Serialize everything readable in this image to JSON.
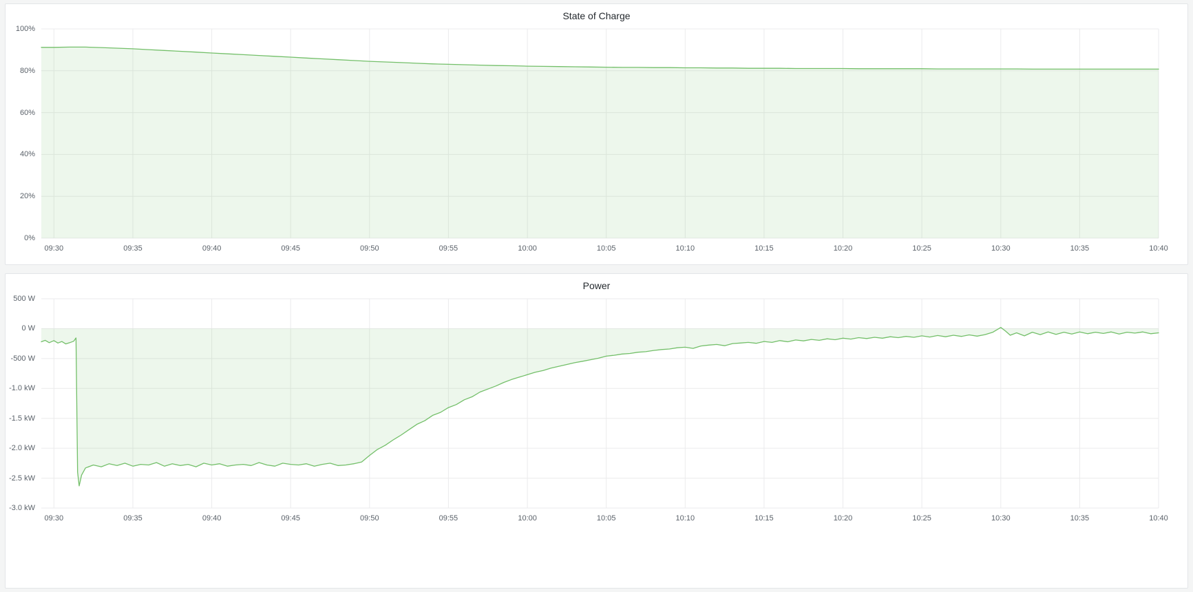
{
  "theme": {
    "page_bg": "#f4f5f5",
    "panel_bg": "#ffffff",
    "panel_border": "#e3e5e8",
    "series_color": "#73bf69",
    "fill_opacity": 0.13,
    "grid_color": "#ebebec",
    "title_color": "#24292e",
    "axis_text_color": "#5a6169"
  },
  "chart_data": [
    {
      "type": "area",
      "name": "state-of-charge",
      "title": "State of Charge",
      "ylabel": "",
      "xlabel": "",
      "legend": "off",
      "grid": "on",
      "xlim": [
        -0.8,
        70
      ],
      "ylim": [
        0,
        100
      ],
      "y_ticks": [
        100,
        80,
        60,
        40,
        20,
        0
      ],
      "y_tick_labels": [
        "100%",
        "80%",
        "60%",
        "40%",
        "20%",
        "0%"
      ],
      "x_ticks": [
        0,
        5,
        10,
        15,
        20,
        25,
        30,
        35,
        40,
        45,
        50,
        55,
        60,
        65,
        70
      ],
      "x_tick_labels": [
        "09:30",
        "09:35",
        "09:40",
        "09:45",
        "09:50",
        "09:55",
        "10:00",
        "10:05",
        "10:10",
        "10:15",
        "10:20",
        "10:25",
        "10:30",
        "10:35",
        "10:40"
      ],
      "x": [
        -0.8,
        0,
        1,
        2,
        3,
        4,
        5,
        6,
        7,
        8,
        9,
        10,
        11,
        12,
        13,
        14,
        15,
        16,
        17,
        18,
        19,
        20,
        21,
        22,
        23,
        24,
        25,
        26,
        27,
        28,
        29,
        30,
        31,
        32,
        33,
        34,
        35,
        36,
        37,
        38,
        39,
        40,
        41,
        42,
        43,
        44,
        45,
        46,
        47,
        48,
        49,
        50,
        51,
        52,
        53,
        54,
        55,
        56,
        57,
        58,
        59,
        60,
        61,
        62,
        63,
        64,
        65,
        66,
        67,
        68,
        69,
        70
      ],
      "values": [
        91.2,
        91.2,
        91.3,
        91.3,
        91.1,
        90.8,
        90.5,
        90.1,
        89.7,
        89.3,
        88.9,
        88.5,
        88.1,
        87.7,
        87.3,
        86.9,
        86.5,
        86.1,
        85.7,
        85.3,
        84.9,
        84.5,
        84.2,
        83.9,
        83.6,
        83.3,
        83.1,
        82.9,
        82.7,
        82.5,
        82.4,
        82.2,
        82.1,
        82.0,
        81.9,
        81.8,
        81.7,
        81.6,
        81.6,
        81.5,
        81.5,
        81.4,
        81.4,
        81.3,
        81.3,
        81.2,
        81.2,
        81.2,
        81.1,
        81.1,
        81.1,
        81.1,
        81.0,
        81.0,
        81.0,
        81.0,
        81.0,
        80.9,
        80.9,
        80.9,
        80.9,
        80.9,
        80.9,
        80.8,
        80.8,
        80.8,
        80.8,
        80.8,
        80.8,
        80.8,
        80.8,
        80.8
      ]
    },
    {
      "type": "area",
      "name": "power",
      "title": "Power",
      "ylabel": "",
      "xlabel": "",
      "legend": "off",
      "grid": "on",
      "unit": "watts",
      "xlim": [
        -0.8,
        70
      ],
      "ylim": [
        -3000,
        500
      ],
      "y_ticks": [
        500,
        0,
        -500,
        -1000,
        -1500,
        -2000,
        -2500,
        -3000
      ],
      "y_tick_labels": [
        "500 W",
        "0 W",
        "-500 W",
        "-1.0 kW",
        "-1.5 kW",
        "-2.0 kW",
        "-2.5 kW",
        "-3.0 kW"
      ],
      "x_ticks": [
        0,
        5,
        10,
        15,
        20,
        25,
        30,
        35,
        40,
        45,
        50,
        55,
        60,
        65,
        70
      ],
      "x_tick_labels": [
        "09:30",
        "09:35",
        "09:40",
        "09:45",
        "09:50",
        "09:55",
        "10:00",
        "10:05",
        "10:10",
        "10:15",
        "10:20",
        "10:25",
        "10:30",
        "10:35",
        "10:40"
      ],
      "x": [
        -0.8,
        -0.55,
        -0.3,
        0,
        0.25,
        0.5,
        0.75,
        1.0,
        1.25,
        1.4,
        1.5,
        1.6,
        1.75,
        2.0,
        2.5,
        3.0,
        3.5,
        4.0,
        4.5,
        5.0,
        5.5,
        6.0,
        6.5,
        7.0,
        7.5,
        8.0,
        8.5,
        9.0,
        9.5,
        10.0,
        10.5,
        11.0,
        11.5,
        12.0,
        12.5,
        13.0,
        13.5,
        14.0,
        14.5,
        15.0,
        15.5,
        16.0,
        16.5,
        17.0,
        17.5,
        18.0,
        18.5,
        19.0,
        19.5,
        20.0,
        20.5,
        21.0,
        21.5,
        22.0,
        22.5,
        23.0,
        23.5,
        24.0,
        24.5,
        25.0,
        25.5,
        26.0,
        26.5,
        27.0,
        27.5,
        28.0,
        28.5,
        29.0,
        29.5,
        30.0,
        30.5,
        31.0,
        31.5,
        32.0,
        32.5,
        33.0,
        33.5,
        34.0,
        34.5,
        35.0,
        35.5,
        36.0,
        36.5,
        37.0,
        37.5,
        38.0,
        38.5,
        39.0,
        39.5,
        40.0,
        40.5,
        41.0,
        41.5,
        42.0,
        42.5,
        43.0,
        43.5,
        44.0,
        44.5,
        45.0,
        45.5,
        46.0,
        46.5,
        47.0,
        47.5,
        48.0,
        48.5,
        49.0,
        49.5,
        50.0,
        50.5,
        51.0,
        51.5,
        52.0,
        52.5,
        53.0,
        53.5,
        54.0,
        54.5,
        55.0,
        55.5,
        56.0,
        56.5,
        57.0,
        57.5,
        58.0,
        58.5,
        59.0,
        59.5,
        60.0,
        60.3,
        60.6,
        61.0,
        61.5,
        62.0,
        62.5,
        63.0,
        63.5,
        64.0,
        64.5,
        65.0,
        65.5,
        66.0,
        66.5,
        67.0,
        67.5,
        68.0,
        68.5,
        69.0,
        69.5,
        70.0
      ],
      "values": [
        -220,
        -195,
        -235,
        -200,
        -240,
        -215,
        -255,
        -235,
        -210,
        -155,
        -2400,
        -2630,
        -2450,
        -2330,
        -2280,
        -2310,
        -2260,
        -2290,
        -2250,
        -2300,
        -2270,
        -2280,
        -2240,
        -2300,
        -2260,
        -2290,
        -2270,
        -2310,
        -2250,
        -2280,
        -2260,
        -2300,
        -2280,
        -2270,
        -2290,
        -2240,
        -2280,
        -2300,
        -2250,
        -2270,
        -2280,
        -2260,
        -2300,
        -2270,
        -2250,
        -2290,
        -2280,
        -2260,
        -2230,
        -2120,
        -2020,
        -1950,
        -1860,
        -1780,
        -1690,
        -1600,
        -1540,
        -1450,
        -1400,
        -1320,
        -1270,
        -1190,
        -1140,
        -1060,
        -1010,
        -960,
        -900,
        -850,
        -810,
        -770,
        -730,
        -700,
        -660,
        -630,
        -600,
        -570,
        -545,
        -520,
        -495,
        -460,
        -445,
        -425,
        -415,
        -395,
        -385,
        -365,
        -350,
        -340,
        -320,
        -310,
        -330,
        -290,
        -275,
        -265,
        -285,
        -250,
        -240,
        -230,
        -245,
        -215,
        -230,
        -200,
        -220,
        -190,
        -205,
        -180,
        -195,
        -170,
        -185,
        -160,
        -175,
        -150,
        -165,
        -145,
        -160,
        -135,
        -150,
        -130,
        -145,
        -120,
        -140,
        -115,
        -135,
        -110,
        -130,
        -105,
        -125,
        -100,
        -60,
        20,
        -40,
        -110,
        -70,
        -120,
        -60,
        -100,
        -55,
        -95,
        -60,
        -90,
        -55,
        -85,
        -60,
        -80,
        -55,
        -90,
        -60,
        -75,
        -55,
        -85,
        -70
      ]
    }
  ]
}
